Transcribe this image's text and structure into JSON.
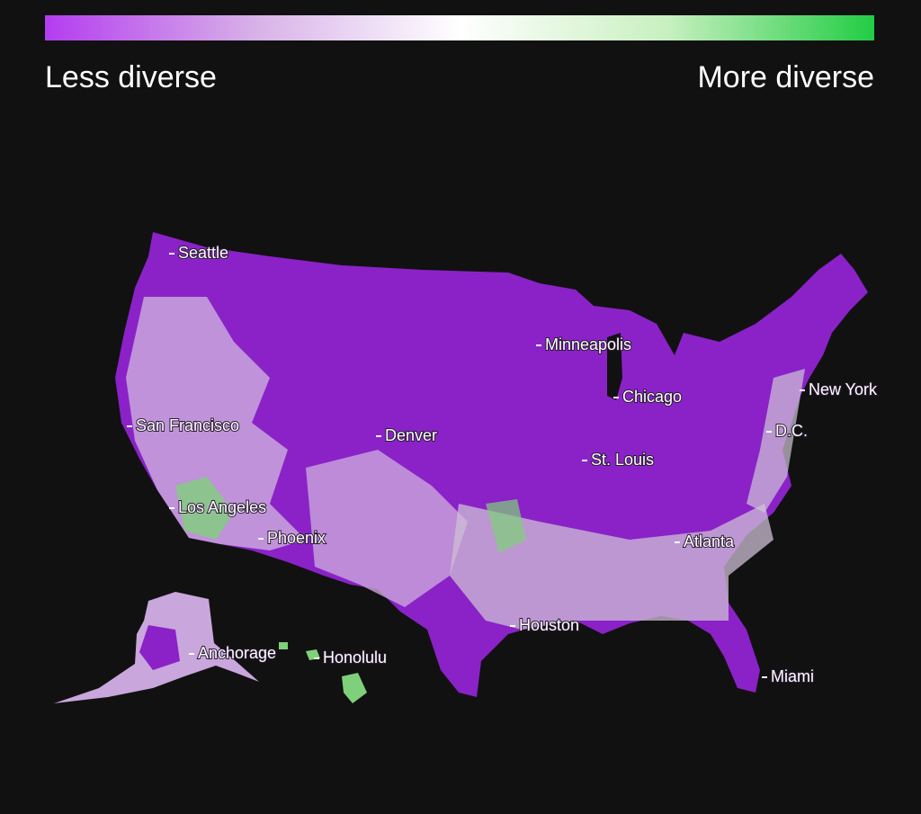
{
  "legend": {
    "low_label": "Less diverse",
    "high_label": "More diverse"
  },
  "cities": [
    {
      "label": "Seattle"
    },
    {
      "label": "Minneapolis"
    },
    {
      "label": "Chicago"
    },
    {
      "label": "New York"
    },
    {
      "label": "San Francisco"
    },
    {
      "label": "Denver"
    },
    {
      "label": "D.C."
    },
    {
      "label": "St. Louis"
    },
    {
      "label": "Los Angeles"
    },
    {
      "label": "Phoenix"
    },
    {
      "label": "Atlanta"
    },
    {
      "label": "Houston"
    },
    {
      "label": "Anchorage"
    },
    {
      "label": "Honolulu"
    },
    {
      "label": "Miami"
    }
  ]
}
